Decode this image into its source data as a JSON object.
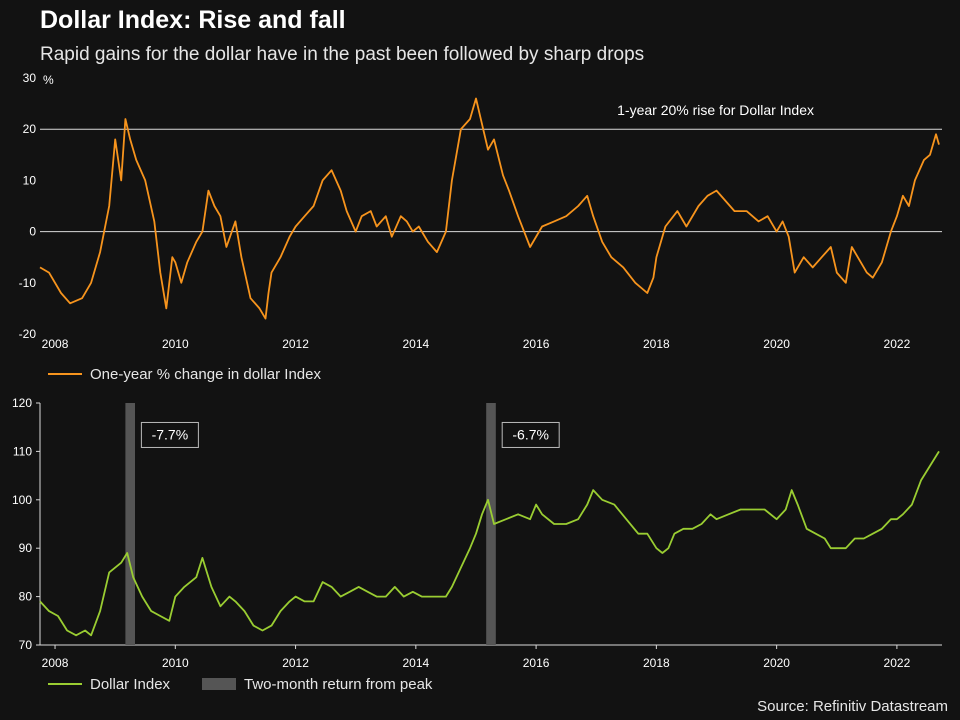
{
  "header": {
    "title": "Dollar Index: Rise and fall",
    "subtitle": "Rapid gains for the dollar have in the past been followed by sharp drops"
  },
  "source": "Source: Refinitiv Datastream",
  "colors": {
    "background": "#121212",
    "orange": "#f7941d",
    "green": "#9acd32",
    "bar": "#555555",
    "text": "#ffffff"
  },
  "chart_data": [
    {
      "type": "line",
      "title": "Dollar Index: Rise and fall",
      "ylabel": "%",
      "ylim": [
        -20,
        30
      ],
      "yticks": [
        "30",
        "20",
        "10",
        "0",
        "-10",
        "-20"
      ],
      "xlim": [
        2007.75,
        2022.75
      ],
      "xticks": [
        "2008",
        "2010",
        "2012",
        "2014",
        "2016",
        "2018",
        "2020",
        "2022"
      ],
      "reference_line": {
        "y": 20,
        "label": "1-year 20% rise for Dollar Index"
      },
      "zero_line": true,
      "legend": "One-year % change in dollar Index",
      "series": [
        {
          "name": "One-year % change in dollar Index",
          "x": [
            2007.75,
            2007.9,
            2008.1,
            2008.25,
            2008.45,
            2008.6,
            2008.75,
            2008.9,
            2009.0,
            2009.1,
            2009.17,
            2009.25,
            2009.35,
            2009.5,
            2009.65,
            2009.75,
            2009.85,
            2009.95,
            2010.0,
            2010.1,
            2010.2,
            2010.35,
            2010.45,
            2010.55,
            2010.65,
            2010.75,
            2010.85,
            2011.0,
            2011.1,
            2011.25,
            2011.4,
            2011.5,
            2011.55,
            2011.6,
            2011.75,
            2011.9,
            2012.0,
            2012.15,
            2012.3,
            2012.45,
            2012.6,
            2012.75,
            2012.85,
            2013.0,
            2013.1,
            2013.25,
            2013.35,
            2013.5,
            2013.6,
            2013.75,
            2013.85,
            2013.95,
            2014.05,
            2014.2,
            2014.35,
            2014.5,
            2014.6,
            2014.75,
            2014.9,
            2015.0,
            2015.1,
            2015.2,
            2015.3,
            2015.45,
            2015.55,
            2015.7,
            2015.9,
            2016.1,
            2016.3,
            2016.5,
            2016.7,
            2016.85,
            2016.95,
            2017.1,
            2017.25,
            2017.45,
            2017.65,
            2017.85,
            2017.95,
            2018.0,
            2018.15,
            2018.35,
            2018.5,
            2018.7,
            2018.85,
            2019.0,
            2019.15,
            2019.3,
            2019.5,
            2019.7,
            2019.85,
            2020.0,
            2020.1,
            2020.2,
            2020.3,
            2020.45,
            2020.6,
            2020.75,
            2020.9,
            2021.0,
            2021.15,
            2021.25,
            2021.4,
            2021.5,
            2021.6,
            2021.75,
            2021.9,
            2022.0,
            2022.1,
            2022.2,
            2022.3,
            2022.45,
            2022.55,
            2022.65,
            2022.7
          ],
          "values": [
            -7,
            -8,
            -12,
            -14,
            -13,
            -10,
            -4,
            5,
            18,
            10,
            22,
            18,
            14,
            10,
            2,
            -8,
            -15,
            -5,
            -6,
            -10,
            -6,
            -2,
            0,
            8,
            5,
            3,
            -3,
            2,
            -5,
            -13,
            -15,
            -17,
            -12,
            -8,
            -5,
            -1,
            1,
            3,
            5,
            10,
            12,
            8,
            4,
            0,
            3,
            4,
            1,
            3,
            -1,
            3,
            2,
            0,
            1,
            -2,
            -4,
            0,
            10,
            20,
            22,
            26,
            21,
            16,
            18,
            11,
            8,
            3,
            -3,
            1,
            2,
            3,
            5,
            7,
            3,
            -2,
            -5,
            -7,
            -10,
            -12,
            -9,
            -5,
            1,
            4,
            1,
            5,
            7,
            8,
            6,
            4,
            4,
            2,
            3,
            0,
            2,
            -1,
            -8,
            -5,
            -7,
            -5,
            -3,
            -8,
            -10,
            -3,
            -6,
            -8,
            -9,
            -6,
            0,
            3,
            7,
            5,
            10,
            14,
            15,
            19,
            17
          ]
        }
      ]
    },
    {
      "type": "line",
      "ylim": [
        70,
        120
      ],
      "yticks": [
        "120",
        "110",
        "100",
        "90",
        "80",
        "70"
      ],
      "xlim": [
        2007.75,
        2022.75
      ],
      "xticks": [
        "2008",
        "2010",
        "2012",
        "2014",
        "2016",
        "2018",
        "2020",
        "2022"
      ],
      "legend": [
        "Dollar Index",
        "Two-month return from peak"
      ],
      "shaded_periods": [
        {
          "start": 2009.17,
          "end": 2009.33,
          "label": "-7.7%"
        },
        {
          "start": 2015.17,
          "end": 2015.33,
          "label": "-6.7%"
        }
      ],
      "series": [
        {
          "name": "Dollar Index",
          "x": [
            2007.75,
            2007.9,
            2008.05,
            2008.2,
            2008.35,
            2008.5,
            2008.6,
            2008.75,
            2008.9,
            2009.0,
            2009.1,
            2009.2,
            2009.3,
            2009.45,
            2009.6,
            2009.75,
            2009.9,
            2010.0,
            2010.15,
            2010.35,
            2010.45,
            2010.6,
            2010.75,
            2010.9,
            2011.0,
            2011.15,
            2011.3,
            2011.45,
            2011.6,
            2011.75,
            2011.9,
            2012.0,
            2012.15,
            2012.3,
            2012.45,
            2012.6,
            2012.75,
            2012.9,
            2013.05,
            2013.2,
            2013.35,
            2013.5,
            2013.65,
            2013.8,
            2013.95,
            2014.1,
            2014.25,
            2014.4,
            2014.5,
            2014.6,
            2014.75,
            2014.9,
            2015.0,
            2015.1,
            2015.2,
            2015.3,
            2015.5,
            2015.7,
            2015.9,
            2016.0,
            2016.1,
            2016.3,
            2016.5,
            2016.7,
            2016.85,
            2016.95,
            2017.1,
            2017.3,
            2017.5,
            2017.7,
            2017.85,
            2018.0,
            2018.1,
            2018.2,
            2018.3,
            2018.45,
            2018.6,
            2018.75,
            2018.9,
            2019.0,
            2019.2,
            2019.4,
            2019.6,
            2019.8,
            2020.0,
            2020.15,
            2020.25,
            2020.35,
            2020.5,
            2020.65,
            2020.8,
            2020.9,
            2021.0,
            2021.15,
            2021.3,
            2021.45,
            2021.6,
            2021.75,
            2021.9,
            2022.0,
            2022.1,
            2022.25,
            2022.4,
            2022.55,
            2022.7
          ],
          "values": [
            79,
            77,
            76,
            73,
            72,
            73,
            72,
            77,
            85,
            86,
            87,
            89,
            84,
            80,
            77,
            76,
            75,
            80,
            82,
            84,
            88,
            82,
            78,
            80,
            79,
            77,
            74,
            73,
            74,
            77,
            79,
            80,
            79,
            79,
            83,
            82,
            80,
            81,
            82,
            81,
            80,
            80,
            82,
            80,
            81,
            80,
            80,
            80,
            80,
            82,
            86,
            90,
            93,
            97,
            100,
            95,
            96,
            97,
            96,
            99,
            97,
            95,
            95,
            96,
            99,
            102,
            100,
            99,
            96,
            93,
            93,
            90,
            89,
            90,
            93,
            94,
            94,
            95,
            97,
            96,
            97,
            98,
            98,
            98,
            96,
            98,
            102,
            99,
            94,
            93,
            92,
            90,
            90,
            90,
            92,
            92,
            93,
            94,
            96,
            96,
            97,
            99,
            104,
            107,
            110
          ]
        }
      ]
    }
  ]
}
